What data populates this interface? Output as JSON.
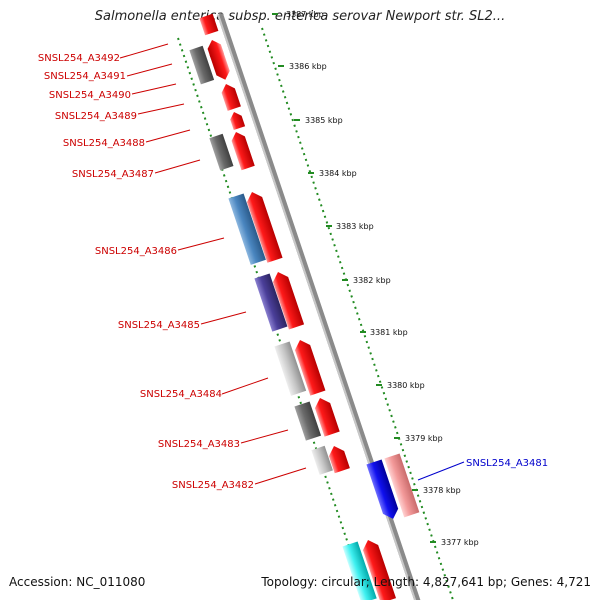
{
  "header": {
    "title": "Salmonella enterica subsp. enterica serovar Newport str. SL2..."
  },
  "footer": {
    "accession": "Accession: NC_011080",
    "summary": "Topology: circular; Length: 4,827,641 bp; Genes: 4,721"
  },
  "scale_labels": [
    "3387 kbp",
    "3386 kbp",
    "3385 kbp",
    "3384 kbp",
    "3383 kbp",
    "3382 kbp",
    "3381 kbp",
    "3380 kbp",
    "3379 kbp",
    "3378 kbp",
    "3377 kbp"
  ],
  "gene_labels": [
    {
      "text": "SNSL254_A3492",
      "color": "#cc0000"
    },
    {
      "text": "SNSL254_A3491",
      "color": "#cc0000"
    },
    {
      "text": "SNSL254_A3490",
      "color": "#cc0000"
    },
    {
      "text": "SNSL254_A3489",
      "color": "#cc0000"
    },
    {
      "text": "SNSL254_A3488",
      "color": "#cc0000"
    },
    {
      "text": "SNSL254_A3487",
      "color": "#cc0000"
    },
    {
      "text": "SNSL254_A3486",
      "color": "#cc0000"
    },
    {
      "text": "SNSL254_A3485",
      "color": "#cc0000"
    },
    {
      "text": "SNSL254_A3484",
      "color": "#cc0000"
    },
    {
      "text": "SNSL254_A3483",
      "color": "#cc0000"
    },
    {
      "text": "SNSL254_A3482",
      "color": "#cc0000"
    },
    {
      "text": "SNSL254_A3481",
      "color": "#0000cc"
    }
  ],
  "colors": {
    "backbone": "#808080",
    "ruler": "#228b22",
    "forward_cds": "#ff0000",
    "reverse_cds": "#0000ee"
  }
}
